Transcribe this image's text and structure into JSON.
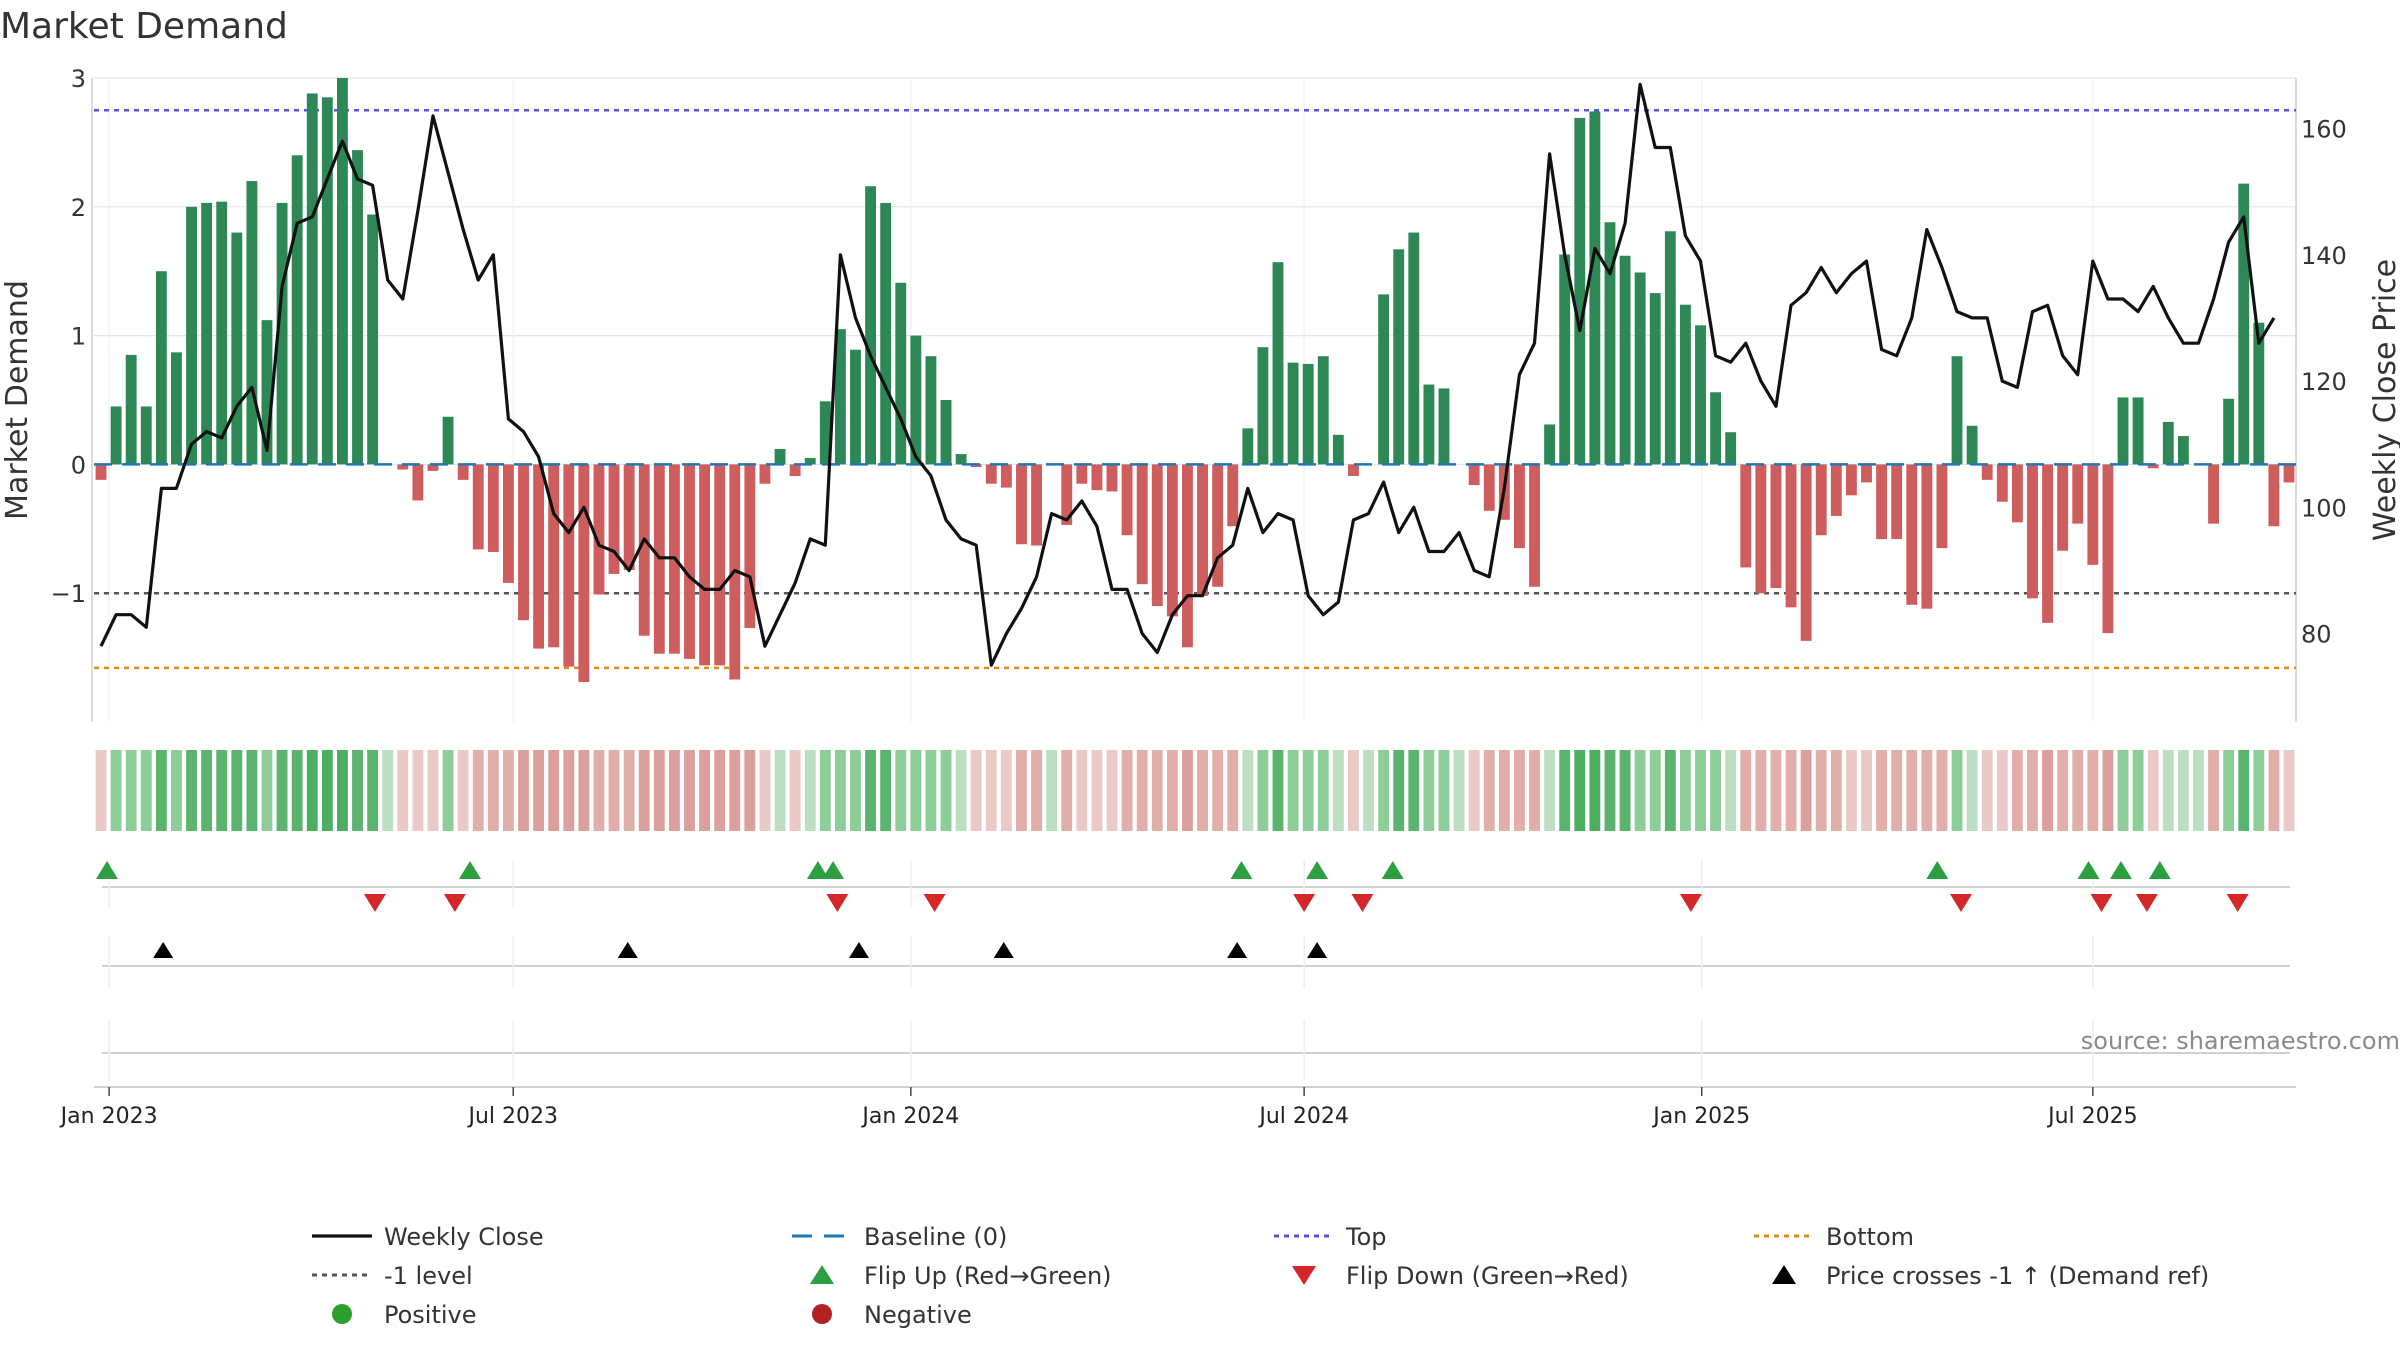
{
  "chart_data": {
    "type": "bar+line",
    "title": "Market Demand",
    "ylabel_left": "Market Demand",
    "ylabel_right": "Weekly Close Price",
    "ylim_left": [
      -2.0,
      3.0
    ],
    "ylim_right": [
      66,
      168
    ],
    "left_ticks": [
      3,
      2,
      1,
      0,
      -1
    ],
    "left_tick_labels": [
      "3",
      "2",
      "1",
      "0",
      "−1"
    ],
    "right_ticks": [
      160,
      140,
      120,
      100,
      80
    ],
    "x_start": "2022-12-19",
    "x_end": "2025-10-03",
    "x_tick_dates": [
      "2022-12-26",
      "2023-07-01",
      "2024-01-01",
      "2024-07-01",
      "2025-01-01",
      "2025-07-01"
    ],
    "x_tick_labels": [
      "Jan 2023",
      "Jul 2023",
      "Jan 2024",
      "Jul 2024",
      "Jan 2025",
      "Jul 2025"
    ],
    "top_level": 2.75,
    "bottom_level": -1.58,
    "minus_one_level": -1,
    "demand": [
      -0.12,
      0.45,
      0.85,
      0.45,
      1.5,
      0.87,
      2.0,
      2.03,
      2.04,
      1.8,
      2.2,
      1.12,
      2.03,
      2.4,
      2.88,
      2.85,
      3.0,
      2.44,
      1.94,
      0.0,
      -0.04,
      -0.28,
      -0.05,
      0.37,
      -0.12,
      -0.66,
      -0.68,
      -0.92,
      -1.21,
      -1.43,
      -1.42,
      -1.57,
      -1.69,
      -1.01,
      -0.85,
      -0.82,
      -1.33,
      -1.47,
      -1.47,
      -1.51,
      -1.56,
      -1.56,
      -1.67,
      -1.27,
      -0.15,
      0.12,
      -0.09,
      0.05,
      0.49,
      1.05,
      0.89,
      2.16,
      2.03,
      1.41,
      1.0,
      0.84,
      0.5,
      0.08,
      -0.02,
      -0.15,
      -0.18,
      -0.62,
      -0.63,
      0.0,
      -0.47,
      -0.15,
      -0.2,
      -0.21,
      -0.55,
      -0.93,
      -1.1,
      -1.18,
      -1.42,
      -1.02,
      -0.95,
      -0.48,
      0.28,
      0.91,
      1.57,
      0.79,
      0.78,
      0.84,
      0.23,
      -0.09,
      0.0,
      1.32,
      1.67,
      1.8,
      0.62,
      0.59,
      0.0,
      -0.16,
      -0.36,
      -0.43,
      -0.65,
      -0.95,
      0.31,
      1.63,
      2.69,
      2.74,
      1.88,
      1.62,
      1.49,
      1.33,
      1.81,
      1.24,
      1.08,
      0.56,
      0.25,
      -0.8,
      -1.0,
      -0.96,
      -1.11,
      -1.37,
      -0.55,
      -0.4,
      -0.24,
      -0.14,
      -0.58,
      -0.58,
      -1.09,
      -1.12,
      -0.65,
      0.84,
      0.3,
      -0.12,
      -0.29,
      -0.45,
      -1.04,
      -1.23,
      -0.67,
      -0.46,
      -0.78,
      -1.31,
      0.52,
      0.52,
      -0.03,
      0.33,
      0.22,
      0.0,
      -0.46,
      0.51,
      2.18,
      1.1,
      -0.48,
      -0.14
    ],
    "weekly_close": [
      78,
      83,
      83,
      81,
      103,
      103,
      110,
      112,
      111,
      116,
      119,
      109,
      135,
      145,
      146,
      152,
      158,
      152,
      151,
      136,
      133,
      147,
      162,
      153,
      144,
      136,
      140,
      114,
      112,
      108,
      99,
      96,
      100,
      94,
      93,
      90,
      95,
      92,
      92,
      89,
      87,
      87,
      90,
      89,
      78,
      83,
      88,
      95,
      94,
      140,
      130,
      124,
      119,
      114,
      108,
      105,
      98,
      95,
      94,
      75,
      80,
      84,
      89,
      99,
      98,
      101,
      97,
      87,
      87,
      80,
      77,
      83,
      86,
      86,
      92,
      94,
      103,
      96,
      99,
      98,
      86,
      83,
      85,
      98,
      99,
      104,
      96,
      100,
      93,
      93,
      96,
      90,
      89,
      103,
      121,
      126,
      156,
      140,
      128,
      141,
      137,
      145,
      167,
      157,
      157,
      143,
      139,
      124,
      123,
      126,
      120,
      116,
      132,
      134,
      138,
      134,
      137,
      139,
      125,
      124,
      130,
      144,
      138,
      131,
      130,
      130,
      120,
      119,
      131,
      132,
      124,
      121,
      139,
      133,
      133,
      131,
      135,
      130,
      126,
      126,
      133,
      142,
      146,
      126,
      130
    ],
    "heat_strip": {
      "neg_light": "#eac9c6",
      "neg_mid": "#e2aeaa",
      "neg_dark": "#dca09c",
      "pos_light": "#bcdfc2",
      "pos_mid": "#8ccd98",
      "pos_dark": "#5bb46e",
      "pos_max": "#4caf60"
    },
    "flip_up_dates": [
      "2022-12-25",
      "2023-06-11",
      "2023-11-19",
      "2023-11-26",
      "2024-06-02",
      "2024-07-07",
      "2024-08-11",
      "2025-04-20",
      "2025-06-29",
      "2025-07-14",
      "2025-08-01"
    ],
    "flip_down_dates": [
      "2023-04-28",
      "2023-06-04",
      "2023-11-28",
      "2024-01-12",
      "2024-07-01",
      "2024-07-28",
      "2024-12-27",
      "2025-05-01",
      "2025-07-05",
      "2025-07-26",
      "2025-09-06"
    ],
    "price_cross_dates": [
      "2023-01-20",
      "2023-08-23",
      "2023-12-08",
      "2024-02-13",
      "2024-05-31",
      "2024-07-07"
    ],
    "colors": {
      "pos_bar": "#2e8856",
      "neg_bar": "#ce5d5e",
      "close_line": "#111111",
      "baseline": "#1f77b4",
      "top": "#5555d7",
      "bottom": "#e08a1c",
      "minus_one": "#555555",
      "flip_up": "#2ca040",
      "flip_down": "#d62728",
      "price_cross": "#000000",
      "positive_dot": "#2ca02c",
      "negative_dot": "#b22222",
      "grid": "#e5e5e5",
      "axis": "#cfcfcf",
      "text": "#333333",
      "source": "#8a8a8a"
    },
    "source": "source: sharemaestro.com",
    "legend": [
      {
        "key": "close",
        "label": "Weekly Close"
      },
      {
        "key": "baseline",
        "label": "Baseline (0)"
      },
      {
        "key": "top",
        "label": "Top"
      },
      {
        "key": "bottom",
        "label": "Bottom"
      },
      {
        "key": "minus_one",
        "label": "-1 level"
      },
      {
        "key": "flip_up",
        "label": "Flip Up (Red→Green)"
      },
      {
        "key": "flip_down",
        "label": "Flip Down (Green→Red)"
      },
      {
        "key": "price_cross",
        "label": "Price crosses -1 ↑ (Demand ref)"
      },
      {
        "key": "positive",
        "label": "Positive"
      },
      {
        "key": "negative",
        "label": "Negative"
      }
    ]
  }
}
